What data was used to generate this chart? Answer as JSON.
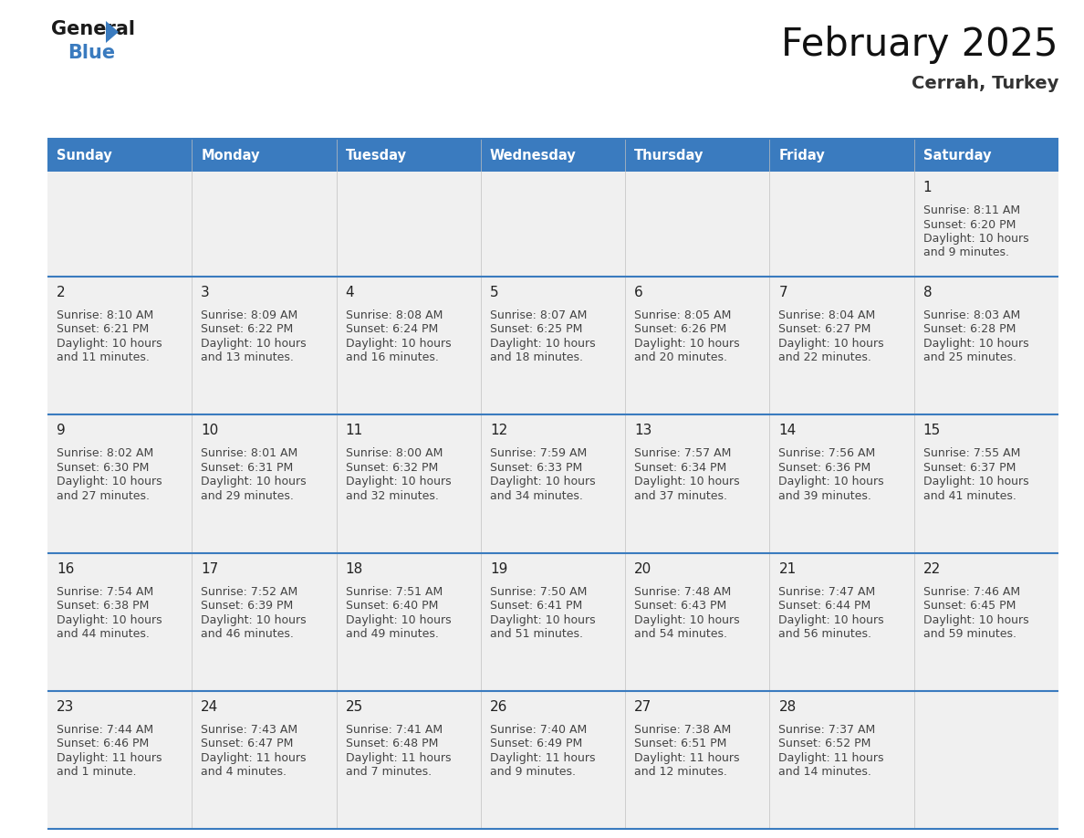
{
  "title": "February 2025",
  "subtitle": "Cerrah, Turkey",
  "header_color": "#3a7bbf",
  "header_text_color": "#ffffff",
  "day_names": [
    "Sunday",
    "Monday",
    "Tuesday",
    "Wednesday",
    "Thursday",
    "Friday",
    "Saturday"
  ],
  "cell_bg_even": "#f2f2f2",
  "cell_bg_odd": "#ffffff",
  "border_color": "#3a7bbf",
  "calendar_data": [
    [
      null,
      null,
      null,
      null,
      null,
      null,
      {
        "day": 1,
        "sunrise": "8:11 AM",
        "sunset": "6:20 PM",
        "daylight": "10 hours and 9 minutes"
      }
    ],
    [
      {
        "day": 2,
        "sunrise": "8:10 AM",
        "sunset": "6:21 PM",
        "daylight": "10 hours and 11 minutes"
      },
      {
        "day": 3,
        "sunrise": "8:09 AM",
        "sunset": "6:22 PM",
        "daylight": "10 hours and 13 minutes"
      },
      {
        "day": 4,
        "sunrise": "8:08 AM",
        "sunset": "6:24 PM",
        "daylight": "10 hours and 16 minutes"
      },
      {
        "day": 5,
        "sunrise": "8:07 AM",
        "sunset": "6:25 PM",
        "daylight": "10 hours and 18 minutes"
      },
      {
        "day": 6,
        "sunrise": "8:05 AM",
        "sunset": "6:26 PM",
        "daylight": "10 hours and 20 minutes"
      },
      {
        "day": 7,
        "sunrise": "8:04 AM",
        "sunset": "6:27 PM",
        "daylight": "10 hours and 22 minutes"
      },
      {
        "day": 8,
        "sunrise": "8:03 AM",
        "sunset": "6:28 PM",
        "daylight": "10 hours and 25 minutes"
      }
    ],
    [
      {
        "day": 9,
        "sunrise": "8:02 AM",
        "sunset": "6:30 PM",
        "daylight": "10 hours and 27 minutes"
      },
      {
        "day": 10,
        "sunrise": "8:01 AM",
        "sunset": "6:31 PM",
        "daylight": "10 hours and 29 minutes"
      },
      {
        "day": 11,
        "sunrise": "8:00 AM",
        "sunset": "6:32 PM",
        "daylight": "10 hours and 32 minutes"
      },
      {
        "day": 12,
        "sunrise": "7:59 AM",
        "sunset": "6:33 PM",
        "daylight": "10 hours and 34 minutes"
      },
      {
        "day": 13,
        "sunrise": "7:57 AM",
        "sunset": "6:34 PM",
        "daylight": "10 hours and 37 minutes"
      },
      {
        "day": 14,
        "sunrise": "7:56 AM",
        "sunset": "6:36 PM",
        "daylight": "10 hours and 39 minutes"
      },
      {
        "day": 15,
        "sunrise": "7:55 AM",
        "sunset": "6:37 PM",
        "daylight": "10 hours and 41 minutes"
      }
    ],
    [
      {
        "day": 16,
        "sunrise": "7:54 AM",
        "sunset": "6:38 PM",
        "daylight": "10 hours and 44 minutes"
      },
      {
        "day": 17,
        "sunrise": "7:52 AM",
        "sunset": "6:39 PM",
        "daylight": "10 hours and 46 minutes"
      },
      {
        "day": 18,
        "sunrise": "7:51 AM",
        "sunset": "6:40 PM",
        "daylight": "10 hours and 49 minutes"
      },
      {
        "day": 19,
        "sunrise": "7:50 AM",
        "sunset": "6:41 PM",
        "daylight": "10 hours and 51 minutes"
      },
      {
        "day": 20,
        "sunrise": "7:48 AM",
        "sunset": "6:43 PM",
        "daylight": "10 hours and 54 minutes"
      },
      {
        "day": 21,
        "sunrise": "7:47 AM",
        "sunset": "6:44 PM",
        "daylight": "10 hours and 56 minutes"
      },
      {
        "day": 22,
        "sunrise": "7:46 AM",
        "sunset": "6:45 PM",
        "daylight": "10 hours and 59 minutes"
      }
    ],
    [
      {
        "day": 23,
        "sunrise": "7:44 AM",
        "sunset": "6:46 PM",
        "daylight": "11 hours and 1 minute"
      },
      {
        "day": 24,
        "sunrise": "7:43 AM",
        "sunset": "6:47 PM",
        "daylight": "11 hours and 4 minutes"
      },
      {
        "day": 25,
        "sunrise": "7:41 AM",
        "sunset": "6:48 PM",
        "daylight": "11 hours and 7 minutes"
      },
      {
        "day": 26,
        "sunrise": "7:40 AM",
        "sunset": "6:49 PM",
        "daylight": "11 hours and 9 minutes"
      },
      {
        "day": 27,
        "sunrise": "7:38 AM",
        "sunset": "6:51 PM",
        "daylight": "11 hours and 12 minutes"
      },
      {
        "day": 28,
        "sunrise": "7:37 AM",
        "sunset": "6:52 PM",
        "daylight": "11 hours and 14 minutes"
      },
      null
    ]
  ],
  "fig_width": 11.88,
  "fig_height": 9.18,
  "dpi": 100
}
